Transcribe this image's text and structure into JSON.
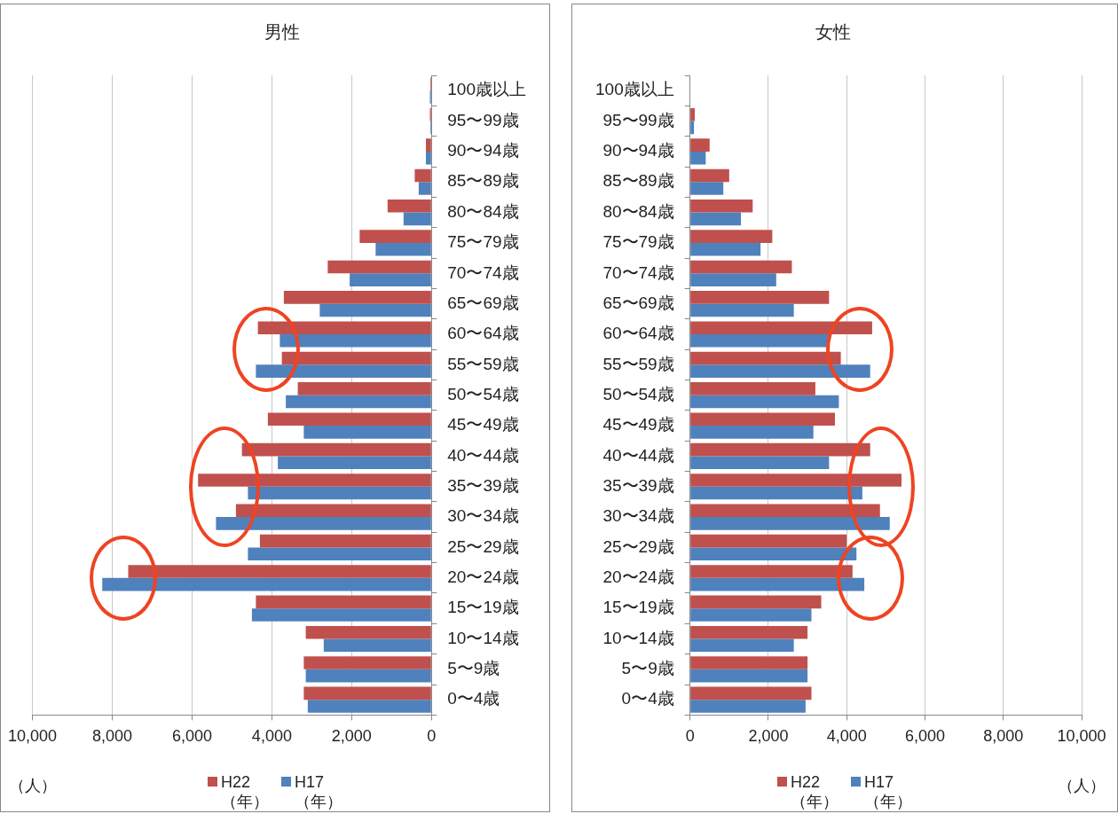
{
  "chart_data": [
    {
      "type": "bar",
      "orientation": "horizontal",
      "title": "男性",
      "xlabel": "（人）",
      "categories": [
        "100歳以上",
        "95〜99歳",
        "90〜94歳",
        "85〜89歳",
        "80〜84歳",
        "75〜79歳",
        "70〜74歳",
        "65〜69歳",
        "60〜64歳",
        "55〜59歳",
        "50〜54歳",
        "45〜49歳",
        "40〜44歳",
        "35〜39歳",
        "30〜34歳",
        "25〜29歳",
        "20〜24歳",
        "15〜19歳",
        "10〜14歳",
        "5〜9歳",
        "0〜4歳"
      ],
      "series": [
        {
          "name": "H22\n（年）",
          "color": "#c0504d",
          "values": [
            30,
            40,
            140,
            420,
            1100,
            1800,
            2600,
            3700,
            4350,
            3750,
            3350,
            4100,
            4750,
            5850,
            4900,
            4300,
            7600,
            4400,
            3150,
            3200,
            3200
          ]
        },
        {
          "name": "H17\n（年）",
          "color": "#4f81bd",
          "values": [
            40,
            30,
            140,
            320,
            700,
            1400,
            2050,
            2800,
            3800,
            4400,
            3650,
            3200,
            3850,
            4600,
            5400,
            4600,
            8250,
            4500,
            2700,
            3150,
            3100
          ]
        }
      ],
      "xlim": [
        10000,
        0
      ],
      "xticks": [
        {
          "value": 10000,
          "label": "10,000"
        },
        {
          "value": 8000,
          "label": "8,000"
        },
        {
          "value": 6000,
          "label": "6,000"
        },
        {
          "value": 4000,
          "label": "4,000"
        },
        {
          "value": 2000,
          "label": "2,000"
        },
        0
      ],
      "grid": "x",
      "legend": "bottom"
    },
    {
      "type": "bar",
      "orientation": "horizontal",
      "title": "女性",
      "xlabel": "（人）",
      "categories": [
        "100歳以上",
        "95〜99歳",
        "90〜94歳",
        "85〜89歳",
        "80〜84歳",
        "75〜79歳",
        "70〜74歳",
        "65〜69歳",
        "60〜64歳",
        "55〜59歳",
        "50〜54歳",
        "45〜49歳",
        "40〜44歳",
        "35〜39歳",
        "30〜34歳",
        "25〜29歳",
        "20〜24歳",
        "15〜19歳",
        "10〜14歳",
        "5〜9歳",
        "0〜4歳"
      ],
      "series": [
        {
          "name": "H22\n（年）",
          "color": "#c0504d",
          "values": [
            0,
            120,
            500,
            1000,
            1600,
            2100,
            2600,
            3550,
            4650,
            3850,
            3200,
            3700,
            4600,
            5400,
            4850,
            4000,
            4150,
            3350,
            3000,
            3000,
            3100
          ]
        },
        {
          "name": "H17\n（年）",
          "color": "#4f81bd",
          "values": [
            0,
            100,
            400,
            850,
            1300,
            1800,
            2200,
            2650,
            3550,
            4600,
            3800,
            3150,
            3550,
            4400,
            5100,
            4250,
            4450,
            3100,
            2650,
            3000,
            2950
          ]
        }
      ],
      "xlim": [
        0,
        10000
      ],
      "xticks": [
        0,
        {
          "value": 2000,
          "label": "2,000"
        },
        {
          "value": 4000,
          "label": "4,000"
        },
        {
          "value": 6000,
          "label": "6,000"
        },
        {
          "value": 8000,
          "label": "8,000"
        },
        {
          "value": 10000,
          "label": "10,000"
        }
      ],
      "grid": "x",
      "legend": "bottom"
    }
  ]
}
